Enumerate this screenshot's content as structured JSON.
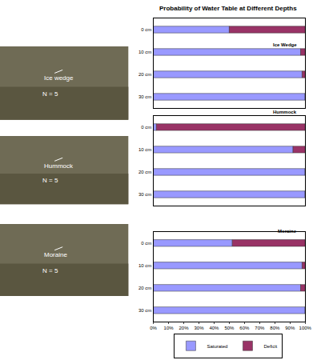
{
  "title": "Probability of Water Table at Different Depths",
  "photos": [
    {
      "label": "Ice wedge",
      "n": "N = 5"
    },
    {
      "label": "Hummock",
      "n": "N = 5"
    },
    {
      "label": "Moraine",
      "n": "N = 5"
    }
  ],
  "chart_data": [
    {
      "type": "bar",
      "title": "Ice Wedge",
      "orientation": "horizontal",
      "stacked": true,
      "tick_labels": "y",
      "categories": [
        "0 cm",
        "10 cm",
        "20 cm",
        "30 cm"
      ],
      "xlim": [
        0,
        100
      ],
      "series": [
        {
          "name": "Saturated",
          "color": "#9999ff",
          "values": [
            50,
            97,
            98,
            100
          ]
        },
        {
          "name": "Deficit",
          "color": "#993366",
          "values": [
            50,
            3,
            2,
            0
          ]
        }
      ]
    },
    {
      "type": "bar",
      "title": "Hummock",
      "orientation": "horizontal",
      "stacked": true,
      "tick_labels": "y",
      "categories": [
        "0 cm",
        "10 cm",
        "20 cm",
        "30 cm"
      ],
      "xlim": [
        0,
        100
      ],
      "series": [
        {
          "name": "Saturated",
          "color": "#9999ff",
          "values": [
            2,
            92,
            100,
            100
          ]
        },
        {
          "name": "Deficit",
          "color": "#993366",
          "values": [
            98,
            8,
            0,
            0
          ]
        }
      ]
    },
    {
      "type": "bar",
      "title": "Moraine",
      "orientation": "horizontal",
      "stacked": true,
      "legend": "bottom",
      "categories": [
        "0 cm",
        "10 cm",
        "20 cm",
        "30 cm"
      ],
      "xlim": [
        0,
        100
      ],
      "xticks": [
        {
          "value": 0,
          "label": "0%"
        },
        {
          "value": 10,
          "label": "10%"
        },
        {
          "value": 20,
          "label": "20%"
        },
        {
          "value": 30,
          "label": "30%"
        },
        {
          "value": 40,
          "label": "40%"
        },
        {
          "value": 50,
          "label": "50%"
        },
        {
          "value": 60,
          "label": "60%"
        },
        {
          "value": 70,
          "label": "70%"
        },
        {
          "value": 80,
          "label": "80%"
        },
        {
          "value": 90,
          "label": "90%"
        },
        {
          "value": 100,
          "label": "100%"
        }
      ],
      "series": [
        {
          "name": "Saturated",
          "color": "#9999ff",
          "values": [
            52,
            98,
            97,
            100
          ]
        },
        {
          "name": "Deficit",
          "color": "#993366",
          "values": [
            48,
            2,
            3,
            0
          ]
        }
      ]
    }
  ]
}
